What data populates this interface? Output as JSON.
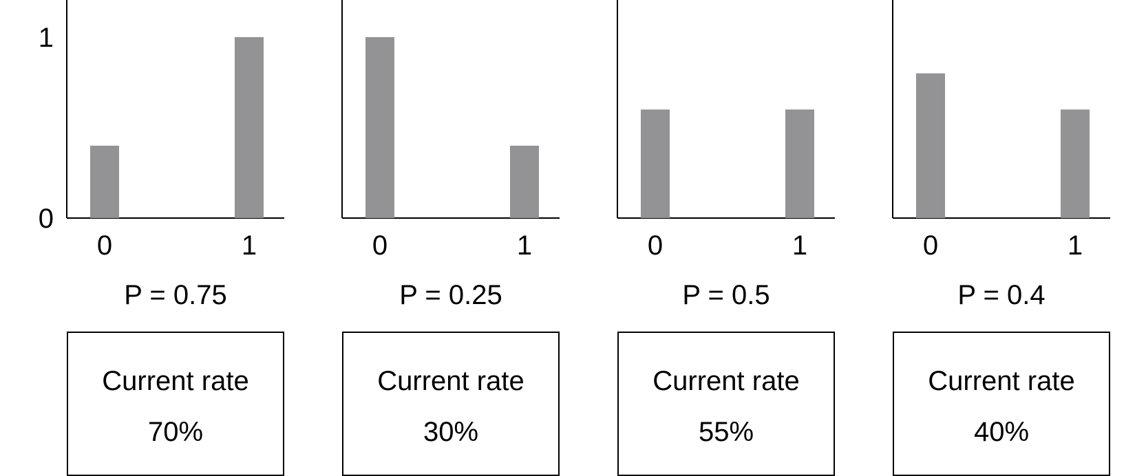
{
  "chart_data": {
    "type": "bar",
    "y_ticks": [
      "0",
      "1"
    ],
    "ylim": [
      0,
      1
    ],
    "bar_color": "#939396",
    "panels": [
      {
        "categories": [
          "0",
          "1"
        ],
        "values": [
          0.4,
          1.0
        ],
        "caption": "P = 0.75",
        "box_label": "Current rate",
        "box_value": "70%"
      },
      {
        "categories": [
          "0",
          "1"
        ],
        "values": [
          1.0,
          0.4
        ],
        "caption": "P = 0.25",
        "box_label": "Current rate",
        "box_value": "30%"
      },
      {
        "categories": [
          "0",
          "1"
        ],
        "values": [
          0.6,
          0.6
        ],
        "caption": "P = 0.5",
        "box_label": "Current rate",
        "box_value": "55%"
      },
      {
        "categories": [
          "0",
          "1"
        ],
        "values": [
          0.8,
          0.6
        ],
        "caption": "P = 0.4",
        "box_label": "Current rate",
        "box_value": "40%"
      }
    ]
  }
}
